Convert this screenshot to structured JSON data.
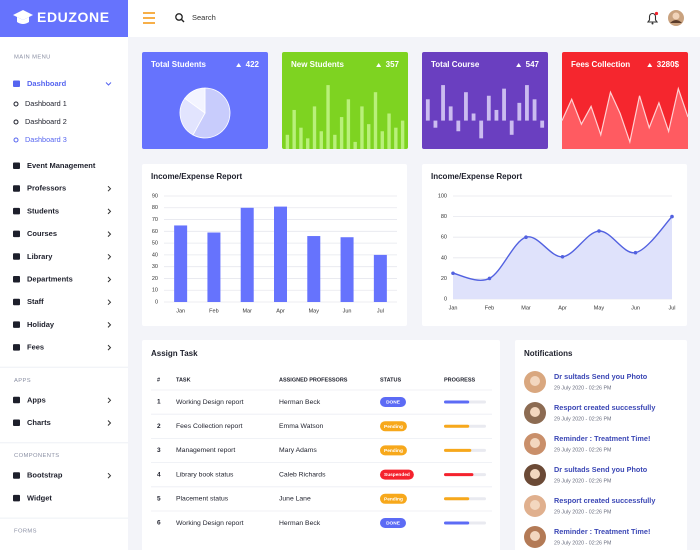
{
  "header": {
    "brand": "EDUZONE",
    "search": "Search"
  },
  "sidebar": {
    "sections": [
      {
        "title": "MAIN MENU",
        "items": [
          {
            "label": "Dashboard",
            "active": true,
            "expanded": true,
            "children": [
              {
                "label": "Dashboard 1"
              },
              {
                "label": "Dashboard 2"
              },
              {
                "label": "Dashboard 3",
                "active": true
              }
            ]
          },
          {
            "label": "Event Management"
          },
          {
            "label": "Professors",
            "submenu": true
          },
          {
            "label": "Students",
            "submenu": true
          },
          {
            "label": "Courses",
            "submenu": true
          },
          {
            "label": "Library",
            "submenu": true
          },
          {
            "label": "Departments",
            "submenu": true
          },
          {
            "label": "Staff",
            "submenu": true
          },
          {
            "label": "Holiday",
            "submenu": true
          },
          {
            "label": "Fees",
            "submenu": true
          }
        ]
      },
      {
        "title": "APPS",
        "items": [
          {
            "label": "Apps",
            "submenu": true
          },
          {
            "label": "Charts",
            "submenu": true
          }
        ]
      },
      {
        "title": "COMPONENTS",
        "items": [
          {
            "label": "Bootstrap",
            "submenu": true
          },
          {
            "label": "Widget"
          }
        ]
      },
      {
        "title": "FORMS",
        "items": []
      }
    ]
  },
  "stat_cards": [
    {
      "title": "Total Students",
      "value": "422",
      "color": "#6673fd",
      "chart": {
        "type": "pie",
        "values": [
          58,
          27,
          15
        ],
        "colors": [
          "#c8ccfc",
          "#e2e4fe",
          "#f3f4ff"
        ]
      }
    },
    {
      "title": "New Students",
      "value": "357",
      "color": "#7ed321",
      "chart": {
        "type": "bar",
        "color": "#b9f07a",
        "ylim": [
          0,
          100
        ],
        "values": [
          20,
          55,
          30,
          15,
          60,
          25,
          90,
          20,
          45,
          70,
          10,
          60,
          35,
          80,
          25,
          50,
          30,
          40
        ]
      }
    },
    {
      "title": "Total Course",
      "value": "547",
      "color": "#6a3fc0",
      "chart": {
        "type": "bar",
        "color": "#cbbcf0",
        "ylim": [
          -40,
          60
        ],
        "values": [
          30,
          -10,
          50,
          20,
          -15,
          40,
          10,
          -25,
          35,
          15,
          45,
          -20,
          25,
          50,
          30,
          -10
        ]
      }
    },
    {
      "title": "Fees Collection",
      "value": "3280$",
      "color": "#f5262e",
      "chart": {
        "type": "area",
        "color": "#ff5b61",
        "stroke": "#ffd0d2",
        "ylim": [
          0,
          100
        ],
        "values": [
          40,
          70,
          35,
          60,
          20,
          80,
          50,
          10,
          75,
          30,
          65,
          25,
          85,
          45
        ]
      }
    }
  ],
  "charts": [
    {
      "type": "bar",
      "title": "Income/Expense Report",
      "color": "#6673fd",
      "categories": [
        "Jan",
        "Feb",
        "Mar",
        "Apr",
        "May",
        "Jun",
        "Jul"
      ],
      "values": [
        65,
        59,
        80,
        81,
        56,
        55,
        40
      ],
      "ylim": [
        0,
        90
      ],
      "yticks": [
        0,
        10,
        20,
        30,
        40,
        50,
        60,
        70,
        80,
        90
      ],
      "grid": true
    },
    {
      "type": "line",
      "title": "Income/Expense Report",
      "color": "#5261e0",
      "fill": "#dfe2fb",
      "categories": [
        "Jan",
        "Feb",
        "Mar",
        "Apr",
        "May",
        "Jun",
        "Jul"
      ],
      "values": [
        25,
        20,
        60,
        41,
        66,
        45,
        80
      ],
      "ylim": [
        0,
        100
      ],
      "yticks": [
        0,
        20,
        40,
        60,
        80,
        100
      ],
      "grid": true
    }
  ],
  "tasks": {
    "title": "Assign Task",
    "headers": [
      "#",
      "TASK",
      "ASSIGNED PROFESSORS",
      "STATUS",
      "PROGRESS"
    ],
    "rows": [
      {
        "n": "1",
        "task": "Working Design report",
        "professor": "Herman Beck",
        "status": "DONE",
        "status_color": "#5c6bf5",
        "progress": 60
      },
      {
        "n": "2",
        "task": "Fees Collection report",
        "professor": "Emma Watson",
        "status": "Pending",
        "status_color": "#f7a81b",
        "progress": 60
      },
      {
        "n": "3",
        "task": "Management report",
        "professor": "Mary Adams",
        "status": "Pending",
        "status_color": "#f7a81b",
        "progress": 65
      },
      {
        "n": "4",
        "task": "Library book status",
        "professor": "Caleb Richards",
        "status": "Suspended",
        "status_color": "#f5222d",
        "progress": 70
      },
      {
        "n": "5",
        "task": "Placement status",
        "professor": "June Lane",
        "status": "Pending",
        "status_color": "#f7a81b",
        "progress": 60
      },
      {
        "n": "6",
        "task": "Working Design report",
        "professor": "Herman Beck",
        "status": "DONE",
        "status_color": "#5c6bf5",
        "progress": 60
      }
    ]
  },
  "notifications": {
    "title": "Notifications",
    "items": [
      {
        "title": "Dr sultads Send you Photo",
        "time": "29 July 2020 - 02:26 PM"
      },
      {
        "title": "Resport created successfully",
        "time": "29 July 2020 - 02:26 PM"
      },
      {
        "title": "Reminder : Treatment Time!",
        "time": "29 July 2020 - 02:26 PM"
      },
      {
        "title": "Dr sultads Send you Photo",
        "time": "29 July 2020 - 02:26 PM"
      },
      {
        "title": "Resport created successfully",
        "time": "29 July 2020 - 02:26 PM"
      },
      {
        "title": "Reminder : Treatment Time!",
        "time": "29 July 2020 - 02:26 PM"
      }
    ]
  }
}
